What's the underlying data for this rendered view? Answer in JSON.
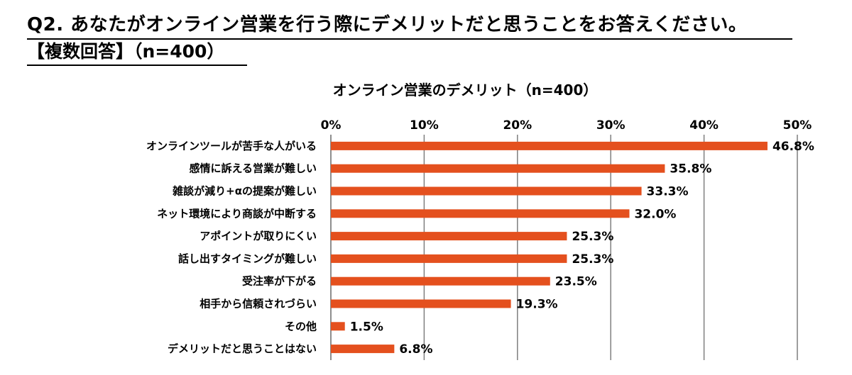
{
  "question": {
    "title": "Q2. あなたがオンライン営業を行う際にデメリットだと思うことをお答えください。",
    "subtitle": "【複数回答】（n=400）"
  },
  "colors": {
    "bar": "#E4501E",
    "grid": "#7f7f7f"
  },
  "chart_data": {
    "type": "bar",
    "orientation": "horizontal",
    "title": "オンライン営業のデメリット（n=400）",
    "xlabel": "",
    "ylabel": "",
    "xlim": [
      0,
      50
    ],
    "x_ticks": [
      "0%",
      "10%",
      "20%",
      "30%",
      "40%",
      "50%"
    ],
    "x_tick_values": [
      0,
      10,
      20,
      30,
      40,
      50
    ],
    "grid": true,
    "axis_position": "top",
    "categories": [
      "オンラインツールが苦手な人がいる",
      "感情に訴える営業が難しい",
      "雑談が減り+αの提案が難しい",
      "ネット環境により商談が中断する",
      "アポイントが取りにくい",
      "話し出すタイミングが難しい",
      "受注率が下がる",
      "相手から信頼されづらい",
      "その他",
      "デメリットだと思うことはない"
    ],
    "values": [
      46.8,
      35.8,
      33.3,
      32.0,
      25.3,
      25.3,
      23.5,
      19.3,
      1.5,
      6.8
    ],
    "value_labels": [
      "46.8%",
      "35.8%",
      "33.3%",
      "32.0%",
      "25.3%",
      "25.3%",
      "23.5%",
      "19.3%",
      "1.5%",
      "6.8%"
    ]
  }
}
